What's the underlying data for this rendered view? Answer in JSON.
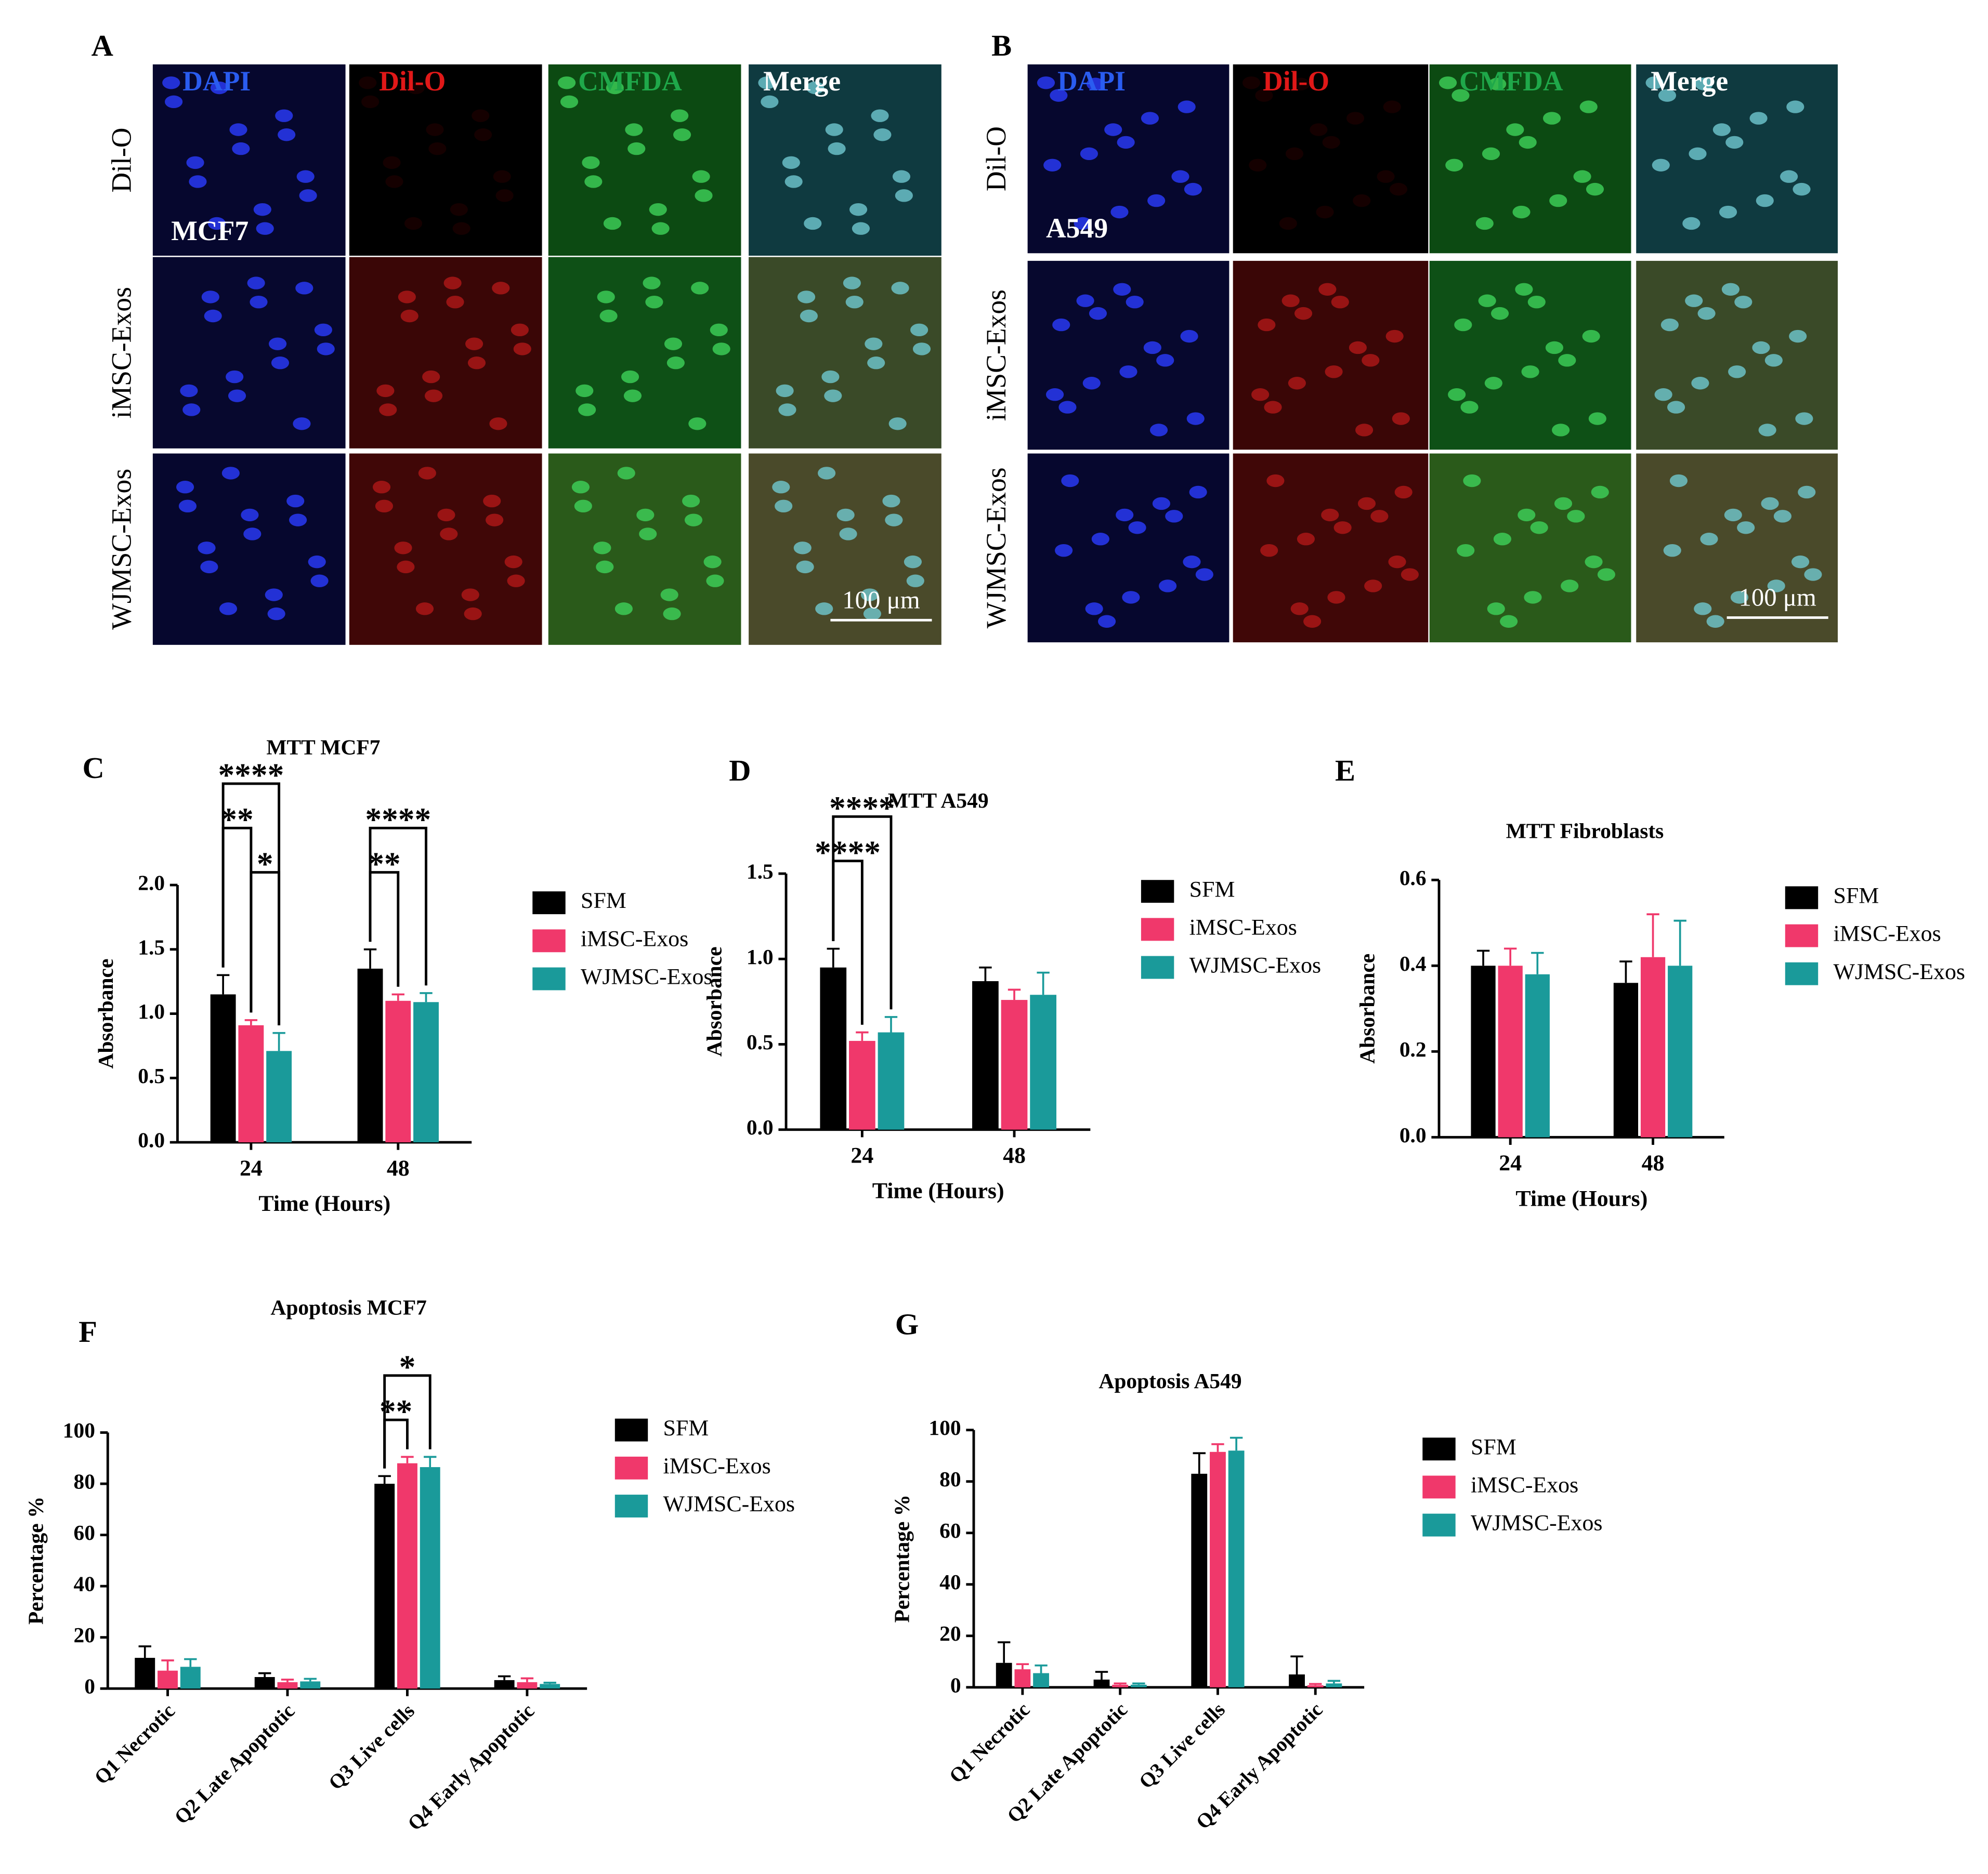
{
  "panels": {
    "labels": [
      "A",
      "B",
      "C",
      "D",
      "E",
      "F",
      "G"
    ],
    "microscopy": [
      {
        "cell_line": "MCF7",
        "channels": [
          "DAPI",
          "Dil-O",
          "CMFDA",
          "Merge"
        ],
        "rows": [
          "Dil-O",
          "iMSC-Exos",
          "WJMSC-Exos"
        ],
        "scale_bar": "100 μm"
      },
      {
        "cell_line": "A549",
        "channels": [
          "DAPI",
          "Dil-O",
          "CMFDA",
          "Merge"
        ],
        "rows": [
          "Dil-O",
          "iMSC-Exos",
          "WJMSC-Exos"
        ],
        "scale_bar": "100 μm"
      }
    ]
  },
  "chart_data": [
    {
      "type": "bar",
      "title": "MTT MCF7",
      "x_label": "Time (Hours)",
      "y_label": "Absorbance",
      "categories": [
        "24",
        "48"
      ],
      "series": [
        {
          "name": "SFM",
          "color": "#000000",
          "values": [
            1.15,
            1.35
          ],
          "errors": [
            0.15,
            0.15
          ]
        },
        {
          "name": "iMSC-Exos",
          "color": "#f0386b",
          "values": [
            0.91,
            1.1
          ],
          "errors": [
            0.04,
            0.05
          ]
        },
        {
          "name": "WJMSC-Exos",
          "color": "#1a9a9a",
          "values": [
            0.71,
            1.09
          ],
          "errors": [
            0.14,
            0.07
          ]
        }
      ],
      "ylim": [
        0,
        2
      ],
      "yticks": [
        {
          "value": 0,
          "label": "0.0"
        },
        0.5,
        {
          "value": 1,
          "label": "1.0"
        },
        1.5,
        {
          "value": 2,
          "label": "2.0"
        }
      ],
      "significance": [
        {
          "category": 0,
          "between": [
            1,
            2
          ],
          "label": "*"
        },
        {
          "category": 0,
          "between": [
            0,
            1
          ],
          "label": "**"
        },
        {
          "category": 0,
          "between": [
            0,
            2
          ],
          "label": "****"
        },
        {
          "category": 1,
          "between": [
            0,
            1
          ],
          "label": "**"
        },
        {
          "category": 1,
          "between": [
            0,
            2
          ],
          "label": "****"
        }
      ]
    },
    {
      "type": "bar",
      "title": "MTT A549",
      "x_label": "Time (Hours)",
      "y_label": "Absorbance",
      "categories": [
        "24",
        "48"
      ],
      "series": [
        {
          "name": "SFM",
          "color": "#000000",
          "values": [
            0.95,
            0.87
          ],
          "errors": [
            0.11,
            0.08
          ]
        },
        {
          "name": "iMSC-Exos",
          "color": "#f0386b",
          "values": [
            0.52,
            0.76
          ],
          "errors": [
            0.05,
            0.06
          ]
        },
        {
          "name": "WJMSC-Exos",
          "color": "#1a9a9a",
          "values": [
            0.57,
            0.79
          ],
          "errors": [
            0.09,
            0.13
          ]
        }
      ],
      "ylim": [
        0,
        1.5
      ],
      "yticks": [
        {
          "value": 0,
          "label": "0.0"
        },
        0.5,
        {
          "value": 1,
          "label": "1.0"
        },
        1.5
      ],
      "significance": [
        {
          "category": 0,
          "between": [
            0,
            1
          ],
          "label": "****"
        },
        {
          "category": 0,
          "between": [
            0,
            2
          ],
          "label": "****"
        }
      ]
    },
    {
      "type": "bar",
      "title": "MTT Fibroblasts",
      "x_label": "Time (Hours)",
      "y_label": "Absorbance",
      "categories": [
        "24",
        "48"
      ],
      "series": [
        {
          "name": "SFM",
          "color": "#000000",
          "values": [
            0.4,
            0.36
          ],
          "errors": [
            0.035,
            0.05
          ]
        },
        {
          "name": "iMSC-Exos",
          "color": "#f0386b",
          "values": [
            0.4,
            0.42
          ],
          "errors": [
            0.04,
            0.1
          ]
        },
        {
          "name": "WJMSC-Exos",
          "color": "#1a9a9a",
          "values": [
            0.38,
            0.4
          ],
          "errors": [
            0.05,
            0.105
          ]
        }
      ],
      "ylim": [
        0,
        0.6
      ],
      "yticks": [
        {
          "value": 0,
          "label": "0.0"
        },
        0.2,
        0.4,
        0.6
      ]
    },
    {
      "type": "bar",
      "title": "Apoptosis MCF7",
      "y_label": "Percentage %",
      "categories": [
        "Q1 Necrotic",
        "Q2 Late Apoptotic",
        "Q3 Live cells",
        "Q4 Early Apoptotic"
      ],
      "series": [
        {
          "name": "SFM",
          "color": "#000000",
          "values": [
            12,
            4.5,
            80,
            3.3
          ],
          "errors": [
            4.5,
            1.5,
            3,
            1.5
          ]
        },
        {
          "name": "iMSC-Exos",
          "color": "#f0386b",
          "values": [
            7,
            2.5,
            88,
            2.5
          ],
          "errors": [
            4,
            1,
            2.5,
            1.5
          ]
        },
        {
          "name": "WJMSC-Exos",
          "color": "#1a9a9a",
          "values": [
            8.5,
            2.8,
            86.5,
            1.8
          ],
          "errors": [
            3,
            1,
            4,
            0.5
          ]
        }
      ],
      "ylim": [
        0,
        100
      ],
      "yticks": [
        0,
        20,
        40,
        60,
        80,
        100
      ],
      "significance": [
        {
          "category": 2,
          "between": [
            0,
            1
          ],
          "label": "**"
        },
        {
          "category": 2,
          "between": [
            0,
            2
          ],
          "label": "*"
        }
      ]
    },
    {
      "type": "bar",
      "title": "Apoptosis A549",
      "y_label": "Percentage %",
      "categories": [
        "Q1 Necrotic",
        "Q2 Late Apoptotic",
        "Q3 Live cells",
        "Q4 Early Apoptotic"
      ],
      "series": [
        {
          "name": "SFM",
          "color": "#000000",
          "values": [
            9.5,
            3,
            83,
            5
          ],
          "errors": [
            8,
            3,
            8,
            7
          ]
        },
        {
          "name": "iMSC-Exos",
          "color": "#f0386b",
          "values": [
            7,
            1,
            91.5,
            0.8
          ],
          "errors": [
            2,
            0.5,
            3,
            0.5
          ]
        },
        {
          "name": "WJMSC-Exos",
          "color": "#1a9a9a",
          "values": [
            5.5,
            1,
            92,
            1.5
          ],
          "errors": [
            3,
            0.5,
            5,
            1
          ]
        }
      ],
      "ylim": [
        0,
        100
      ],
      "yticks": [
        0,
        20,
        40,
        60,
        80,
        100
      ]
    }
  ]
}
